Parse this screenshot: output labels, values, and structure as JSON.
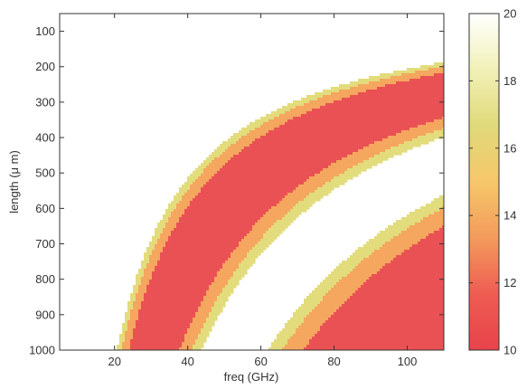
{
  "chart_data": {
    "type": "heatmap",
    "xlabel": "freq (GHz)",
    "ylabel": "length (μ m)",
    "xlim": [
      5,
      110
    ],
    "ylim": [
      50,
      1000
    ],
    "y_reversed": true,
    "x_ticks": [
      20,
      40,
      60,
      80,
      100
    ],
    "y_ticks": [
      100,
      200,
      300,
      400,
      500,
      600,
      700,
      800,
      900,
      1000
    ],
    "colorbar": {
      "range": [
        10,
        20
      ],
      "ticks": [
        10,
        12,
        14,
        16,
        18,
        20
      ],
      "colors": [
        "#e8434c",
        "#ee5c52",
        "#f39b5c",
        "#f6c76a",
        "#e0d97a",
        "#f1f1b8",
        "#ffffff"
      ]
    },
    "levels": [
      {
        "lower": 10,
        "upper": 14,
        "color": "#ea5154"
      },
      {
        "lower": 14,
        "upper": 16,
        "color": "#f5a65f"
      },
      {
        "lower": 16,
        "upper": 18,
        "color": "#e2dc7c"
      },
      {
        "lower": 18,
        "upper": 20,
        "color": "#ffffff"
      }
    ],
    "field": {
      "description": "value depends on product freq*length; minima (red) near freq*length = 30 and 90 GHz*mm",
      "minima_freq_length_product": [
        30,
        90
      ],
      "red_half_width": 0.23,
      "orange_half_width": 0.315,
      "yellow_half_width": 0.375
    },
    "grid": false
  }
}
